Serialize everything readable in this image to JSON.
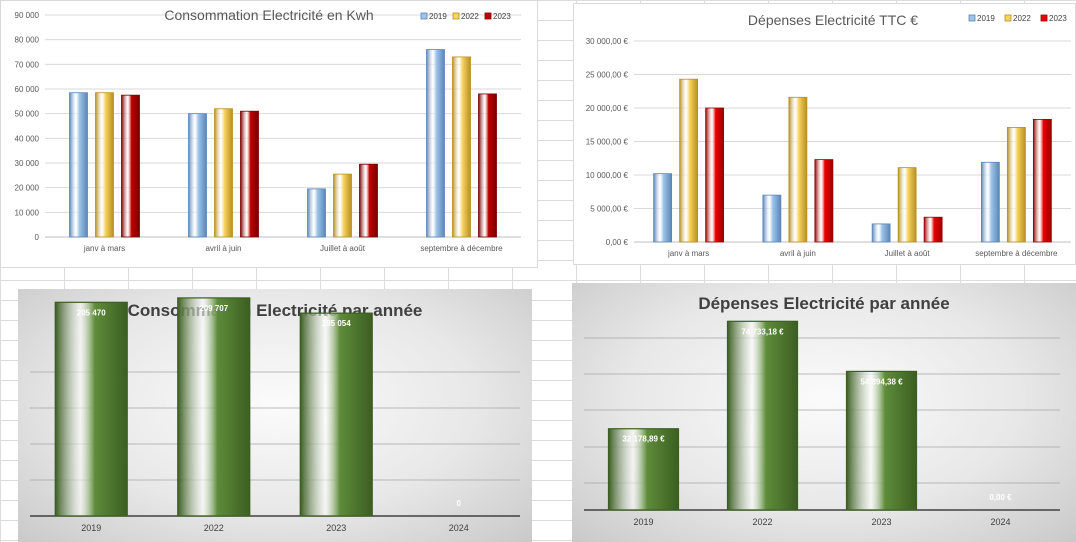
{
  "colors": {
    "s2019": "#9dc3e6",
    "s2019_edge": "#5b86b9",
    "s2022": "#f7d35f",
    "s2022_edge": "#b8901f",
    "s2023": "#c00000",
    "s2023_edge": "#7a0000",
    "s2023_bright": "#ee0000",
    "s2023_bright_edge": "#9b0000",
    "green": "#5e8c3a",
    "green_edge": "#3c5e22"
  },
  "chart_data": [
    {
      "type": "bar",
      "title": "Consommation Electricité en Kwh",
      "categories": [
        "janv à mars",
        "avril à juin",
        "Juillet à août",
        "septembre à décembre"
      ],
      "series": [
        {
          "name": "2019",
          "values": [
            58500,
            50000,
            19500,
            76000
          ]
        },
        {
          "name": "2022",
          "values": [
            58500,
            52000,
            25500,
            73000
          ]
        },
        {
          "name": "2023",
          "values": [
            57500,
            51000,
            29500,
            58000
          ]
        }
      ],
      "ylim": [
        0,
        90000
      ],
      "yticks": [
        0,
        10000,
        20000,
        30000,
        40000,
        50000,
        60000,
        70000,
        80000,
        90000
      ],
      "ytick_labels": [
        "0",
        "10 000",
        "20 000",
        "30 000",
        "40 000",
        "50 000",
        "60 000",
        "70 000",
        "80 000",
        "90 000"
      ],
      "legend": "top-right",
      "grid": true
    },
    {
      "type": "bar",
      "title": "Dépenses Electricité TTC €",
      "categories": [
        "janv à mars",
        "avril à juin",
        "Juillet à août",
        "septembre à décembre"
      ],
      "series": [
        {
          "name": "2019",
          "values": [
            10200,
            7000,
            2700,
            11900
          ]
        },
        {
          "name": "2022",
          "values": [
            24300,
            21600,
            11100,
            17100
          ]
        },
        {
          "name": "2023",
          "values": [
            20000,
            12300,
            3700,
            18300
          ]
        }
      ],
      "ylim": [
        0,
        30000
      ],
      "yticks": [
        0,
        5000,
        10000,
        15000,
        20000,
        25000,
        30000
      ],
      "ytick_labels": [
        "0,00 €",
        "5 000,00 €",
        "10 000,00 €",
        "15 000,00 €",
        "20 000,00 €",
        "25 000,00 €",
        "30 000,00 €"
      ],
      "legend": "top-right",
      "grid": true
    },
    {
      "type": "bar",
      "title": "Consommation Electricité par année",
      "categories": [
        "2019",
        "2022",
        "2023",
        "2024"
      ],
      "values": [
        205470,
        209707,
        195054,
        0
      ],
      "data_labels": [
        "205 470",
        "209 707",
        "195 054",
        "0"
      ],
      "ylim": [
        0,
        250000
      ],
      "grid": true
    },
    {
      "type": "bar",
      "title": "Dépenses Electricité par année",
      "categories": [
        "2019",
        "2022",
        "2023",
        "2024"
      ],
      "values": [
        32178.89,
        74733.18,
        54894.38,
        0
      ],
      "data_labels": [
        "32 178,89 €",
        "74 733,18 €",
        "54 894,38 €",
        "0,00 €"
      ],
      "ylim": [
        0,
        80000
      ],
      "grid": true
    }
  ]
}
